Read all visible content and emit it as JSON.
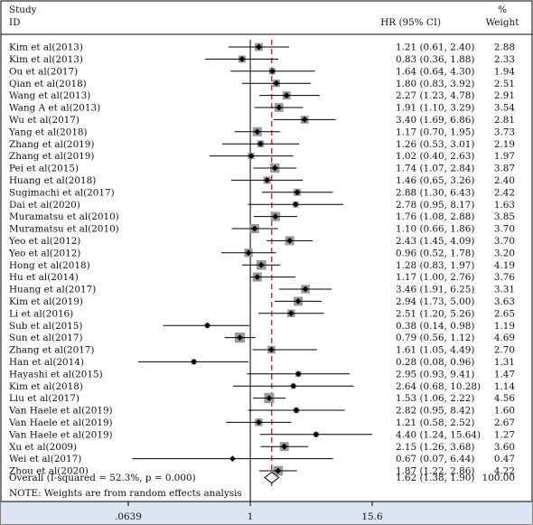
{
  "header": {
    "study_label": "Study",
    "id_label": "ID",
    "hr_label": "HR (95% CI)",
    "weight_percent_label": "%",
    "weight_label": "Weight"
  },
  "footer_note": "NOTE: Weights are from random effects analysis",
  "colors": {
    "box": "#9a9a9a",
    "point": "#000000",
    "line": "#000000",
    "overall_dashed_line": "#a02020",
    "axis_band": "#dce6f2"
  },
  "chart_data": {
    "type": "forest",
    "title": "",
    "xlabel": "",
    "x_scale": "log",
    "x_ticks": [
      {
        "value": 0.0639,
        "label": ".0639"
      },
      {
        "value": 1,
        "label": "1"
      },
      {
        "value": 15.6,
        "label": "15.6"
      }
    ],
    "null_line": 1,
    "studies": [
      {
        "id": "Kim et al(2013)",
        "hr": 1.21,
        "lo": 0.61,
        "hi": 2.4,
        "ci_text": "1.21 (0.61, 2.40)",
        "weight": 2.88,
        "weight_text": "2.88"
      },
      {
        "id": "Kim et al(2013)",
        "hr": 0.83,
        "lo": 0.36,
        "hi": 1.88,
        "ci_text": "0.83 (0.36, 1.88)",
        "weight": 2.33,
        "weight_text": "2.33"
      },
      {
        "id": "Ou et al(2017)",
        "hr": 1.64,
        "lo": 0.64,
        "hi": 4.3,
        "ci_text": "1.64 (0.64, 4.30)",
        "weight": 1.94,
        "weight_text": "1.94"
      },
      {
        "id": "Qian et al(2018)",
        "hr": 1.8,
        "lo": 0.83,
        "hi": 3.92,
        "ci_text": "1.80 (0.83, 3.92)",
        "weight": 2.51,
        "weight_text": "2.51"
      },
      {
        "id": "Wang et al(2013)",
        "hr": 2.27,
        "lo": 1.23,
        "hi": 4.78,
        "ci_text": "2.27 (1.23, 4.78)",
        "weight": 2.91,
        "weight_text": "2.91"
      },
      {
        "id": "Wang A et al(2013)",
        "hr": 1.91,
        "lo": 1.1,
        "hi": 3.29,
        "ci_text": "1.91 (1.10, 3.29)",
        "weight": 3.54,
        "weight_text": "3.54"
      },
      {
        "id": "Wu et al(2017)",
        "hr": 3.4,
        "lo": 1.69,
        "hi": 6.86,
        "ci_text": "3.40 (1.69, 6.86)",
        "weight": 2.81,
        "weight_text": "2.81"
      },
      {
        "id": "Yang et al(2018)",
        "hr": 1.17,
        "lo": 0.7,
        "hi": 1.95,
        "ci_text": "1.17 (0.70, 1.95)",
        "weight": 3.73,
        "weight_text": "3.73"
      },
      {
        "id": "Zhang et al(2019)",
        "hr": 1.26,
        "lo": 0.53,
        "hi": 3.01,
        "ci_text": "1.26 (0.53, 3.01)",
        "weight": 2.19,
        "weight_text": "2.19"
      },
      {
        "id": "Zhang et al(2019)",
        "hr": 1.02,
        "lo": 0.4,
        "hi": 2.63,
        "ci_text": "1.02 (0.40, 2.63)",
        "weight": 1.97,
        "weight_text": "1.97"
      },
      {
        "id": "Pei et al(2015)",
        "hr": 1.74,
        "lo": 1.07,
        "hi": 2.84,
        "ci_text": "1.74 (1.07, 2.84)",
        "weight": 3.87,
        "weight_text": "3.87"
      },
      {
        "id": "Huang et al(2018)",
        "hr": 1.46,
        "lo": 0.65,
        "hi": 3.26,
        "ci_text": "1.46 (0.65, 3.26)",
        "weight": 2.4,
        "weight_text": "2.40"
      },
      {
        "id": "Sugimachi et al(2017)",
        "hr": 2.88,
        "lo": 1.3,
        "hi": 6.43,
        "ci_text": "2.88 (1.30, 6.43)",
        "weight": 2.42,
        "weight_text": "2.42"
      },
      {
        "id": "Dai et al(2020)",
        "hr": 2.78,
        "lo": 0.95,
        "hi": 8.17,
        "ci_text": "2.78 (0.95, 8.17)",
        "weight": 1.63,
        "weight_text": "1.63"
      },
      {
        "id": "Muramatsu et al(2010)",
        "hr": 1.76,
        "lo": 1.08,
        "hi": 2.88,
        "ci_text": "1.76 (1.08, 2.88)",
        "weight": 3.85,
        "weight_text": "3.85"
      },
      {
        "id": "Muramatsu et al(2010)",
        "hr": 1.1,
        "lo": 0.66,
        "hi": 1.86,
        "ci_text": "1.10 (0.66, 1.86)",
        "weight": 3.7,
        "weight_text": "3.70"
      },
      {
        "id": "Yeo et al(2012)",
        "hr": 2.43,
        "lo": 1.45,
        "hi": 4.09,
        "ci_text": "2.43 (1.45, 4.09)",
        "weight": 3.7,
        "weight_text": "3.70"
      },
      {
        "id": "Yeo et al(2012)",
        "hr": 0.96,
        "lo": 0.52,
        "hi": 1.78,
        "ci_text": "0.96 (0.52, 1.78)",
        "weight": 3.2,
        "weight_text": "3.20"
      },
      {
        "id": "Hong et al(2018)",
        "hr": 1.28,
        "lo": 0.83,
        "hi": 1.97,
        "ci_text": "1.28 (0.83, 1.97)",
        "weight": 4.19,
        "weight_text": "4.19"
      },
      {
        "id": "Hu et al(2014)",
        "hr": 1.17,
        "lo": 1.0,
        "hi": 2.76,
        "ci_text": "1.17 (1.00, 2.76)",
        "weight": 3.76,
        "weight_text": "3.76"
      },
      {
        "id": "Huang et al(2017)",
        "hr": 3.46,
        "lo": 1.91,
        "hi": 6.25,
        "ci_text": "3.46 (1.91, 6.25)",
        "weight": 3.31,
        "weight_text": "3.31"
      },
      {
        "id": "Kim et al(2019)",
        "hr": 2.94,
        "lo": 1.73,
        "hi": 5.0,
        "ci_text": "2.94 (1.73, 5.00)",
        "weight": 3.63,
        "weight_text": "3.63"
      },
      {
        "id": "Li et al(2016)",
        "hr": 2.51,
        "lo": 1.2,
        "hi": 5.26,
        "ci_text": "2.51 (1.20, 5.26)",
        "weight": 2.65,
        "weight_text": "2.65"
      },
      {
        "id": "Sub et al(2015)",
        "hr": 0.38,
        "lo": 0.14,
        "hi": 0.98,
        "ci_text": "0.38 (0.14, 0.98)",
        "weight": 1.19,
        "weight_text": "1.19"
      },
      {
        "id": "Sun et al(2017)",
        "hr": 0.79,
        "lo": 0.56,
        "hi": 1.12,
        "ci_text": "0.79 (0.56, 1.12)",
        "weight": 4.69,
        "weight_text": "4.69"
      },
      {
        "id": "Zhang et al(2017)",
        "hr": 1.61,
        "lo": 1.05,
        "hi": 4.49,
        "ci_text": "1.61 (1.05, 4.49)",
        "weight": 2.7,
        "weight_text": "2.70"
      },
      {
        "id": "Han et al(2014)",
        "hr": 0.28,
        "lo": 0.08,
        "hi": 0.96,
        "ci_text": "0.28 (0.08, 0.96)",
        "weight": 1.31,
        "weight_text": "1.31"
      },
      {
        "id": "Hayashi et al(2015)",
        "hr": 2.95,
        "lo": 0.93,
        "hi": 9.41,
        "ci_text": "2.95 (0.93, 9.41)",
        "weight": 1.47,
        "weight_text": "1.47"
      },
      {
        "id": "Kim et al(2018)",
        "hr": 2.64,
        "lo": 0.68,
        "hi": 10.28,
        "ci_text": "2.64 (0.68, 10.28)",
        "weight": 1.14,
        "weight_text": "1.14"
      },
      {
        "id": "Liu et al(2017)",
        "hr": 1.53,
        "lo": 1.06,
        "hi": 2.22,
        "ci_text": "1.53 (1.06, 2.22)",
        "weight": 4.56,
        "weight_text": "4.56"
      },
      {
        "id": "Van Haele et al(2019)",
        "hr": 2.82,
        "lo": 0.95,
        "hi": 8.42,
        "ci_text": "2.82 (0.95, 8.42)",
        "weight": 1.6,
        "weight_text": "1.60"
      },
      {
        "id": "Van Haele et al(2019)",
        "hr": 1.21,
        "lo": 0.58,
        "hi": 2.52,
        "ci_text": "1.21 (0.58, 2.52)",
        "weight": 2.67,
        "weight_text": "2.67"
      },
      {
        "id": "Van Haele et al(2019)",
        "hr": 4.4,
        "lo": 1.24,
        "hi": 15.64,
        "ci_text": "4.40 (1.24, 15.64)",
        "weight": 1.27,
        "weight_text": "1.27"
      },
      {
        "id": "Xu et al(2009)",
        "hr": 2.15,
        "lo": 1.26,
        "hi": 3.68,
        "ci_text": "2.15 (1.26, 3.68)",
        "weight": 3.6,
        "weight_text": "3.60"
      },
      {
        "id": "Wei et al(2017)",
        "hr": 0.67,
        "lo": 0.07,
        "hi": 6.44,
        "ci_text": "0.67 (0.07, 6.44)",
        "weight": 0.47,
        "weight_text": "0.47"
      },
      {
        "id": "Zhou et al(2020)",
        "hr": 1.87,
        "lo": 1.22,
        "hi": 2.86,
        "ci_text": "1.87 (1.22, 2.86)",
        "weight": 4.22,
        "weight_text": "4.22"
      }
    ],
    "overall": {
      "label": "Overall (I-squared = 52.3%, p = 0.000)",
      "hr": 1.62,
      "lo": 1.38,
      "hi": 1.9,
      "ci_text": "1.62 (1.38, 1.90)",
      "weight_text": "100.00"
    }
  }
}
